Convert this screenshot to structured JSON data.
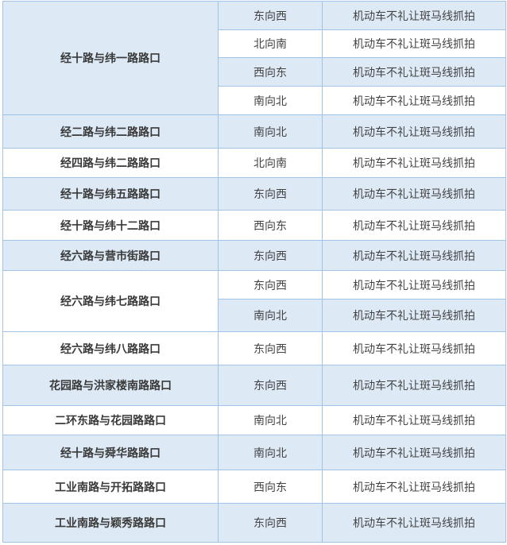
{
  "rows": [
    {
      "location": "经十路与纬一路路口",
      "entries": [
        {
          "direction": "东向西",
          "event": "机动车不礼让斑马线抓拍"
        },
        {
          "direction": "北向南",
          "event": "机动车不礼让斑马线抓拍"
        },
        {
          "direction": "西向东",
          "event": "机动车不礼让斑马线抓拍"
        },
        {
          "direction": "南向北",
          "event": "机动车不礼让斑马线抓拍"
        }
      ]
    },
    {
      "location": "经二路与纬二路路口",
      "entries": [
        {
          "direction": "南向北",
          "event": "机动车不礼让斑马线抓拍"
        }
      ]
    },
    {
      "location": "经四路与纬二路路口",
      "entries": [
        {
          "direction": "北向南",
          "event": "机动车不礼让斑马线抓拍"
        }
      ]
    },
    {
      "location": "经十路与纬五路路口",
      "entries": [
        {
          "direction": "东向西",
          "event": "机动车不礼让斑马线抓拍"
        }
      ]
    },
    {
      "location": "经十路与纬十二路口",
      "entries": [
        {
          "direction": "西向东",
          "event": "机动车不礼让斑马线抓拍"
        }
      ]
    },
    {
      "location": "经六路与营市街路口",
      "entries": [
        {
          "direction": "东向西",
          "event": "机动车不礼让斑马线抓拍"
        }
      ]
    },
    {
      "location": "经六路与纬七路路口",
      "entries": [
        {
          "direction": "东向西",
          "event": "机动车不礼让斑马线抓拍"
        },
        {
          "direction": "南向北",
          "event": "机动车不礼让斑马线抓拍"
        }
      ]
    },
    {
      "location": "经六路与纬八路路口",
      "entries": [
        {
          "direction": "东向西",
          "event": "机动车不礼让斑马线抓拍"
        }
      ]
    },
    {
      "location": "花园路与洪家楼南路路口",
      "entries": [
        {
          "direction": "东向西",
          "event": "机动车不礼让斑马线抓拍"
        }
      ]
    },
    {
      "location": "二环东路与花园路路口",
      "entries": [
        {
          "direction": "南向北",
          "event": "机动车不礼让斑马线抓拍"
        }
      ]
    },
    {
      "location": "经十路与舜华路路口",
      "entries": [
        {
          "direction": "南向北",
          "event": "机动车不礼让斑马线抓拍"
        }
      ]
    },
    {
      "location": "工业南路与开拓路路口",
      "entries": [
        {
          "direction": "西向东",
          "event": "机动车不礼让斑马线抓拍"
        }
      ]
    },
    {
      "location": "工业南路与颖秀路路口",
      "entries": [
        {
          "direction": "东向西",
          "event": "机动车不礼让斑马线抓拍"
        }
      ]
    }
  ]
}
